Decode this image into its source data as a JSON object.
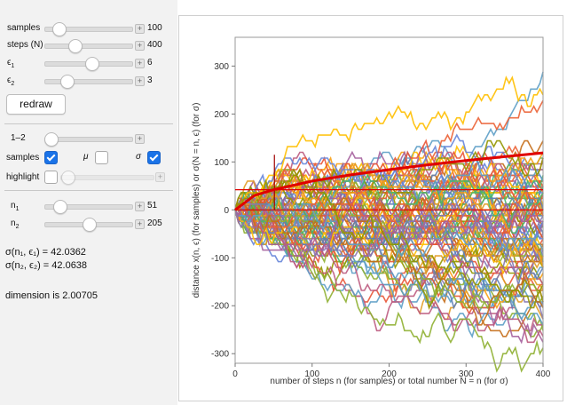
{
  "controls": {
    "samples": {
      "label": "samples",
      "value": "100",
      "fraction": 0.15
    },
    "steps": {
      "label": "steps (N)",
      "value": "400",
      "fraction": 0.35
    },
    "eps1": {
      "label_base": "ϵ",
      "label_sub": "1",
      "value": "6",
      "fraction": 0.55
    },
    "eps2": {
      "label_base": "ϵ",
      "label_sub": "2",
      "value": "3",
      "fraction": 0.27
    },
    "redraw_label": "redraw",
    "range_label": "1–2",
    "range_fraction": 0.0,
    "check_samples": {
      "label": "samples",
      "checked": true
    },
    "check_mu": {
      "label": "μ",
      "checked": false
    },
    "check_sigma": {
      "label": "σ",
      "checked": true
    },
    "highlight": {
      "label": "highlight",
      "checked": false
    },
    "n1": {
      "label_base": "n",
      "label_sub": "1",
      "value": "51",
      "fraction": 0.12
    },
    "n2": {
      "label_base": "n",
      "label_sub": "2",
      "value": "205",
      "fraction": 0.5
    }
  },
  "results": {
    "sigma1": "σ(n₁, ϵ₁) = 42.0362",
    "sigma2": "σ(n₂, ϵ₂) = 42.0638",
    "dimension": "dimension is 2.00705"
  },
  "colors": {
    "sigma_curve": "#e00000",
    "accent": "#1a73e8"
  },
  "chart_data": {
    "type": "line",
    "xlabel": "number of steps n (for samples) or total number N = n (for σ)",
    "ylabel": "distance x(n, ϵ) (for samples) or σ(N = n, ϵ) (for σ)",
    "xlim": [
      0,
      400
    ],
    "ylim": [
      -320,
      360
    ],
    "x_ticks": [
      0,
      100,
      200,
      300,
      400
    ],
    "y_ticks": [
      -300,
      -200,
      -100,
      0,
      100,
      200,
      300
    ],
    "series": [
      {
        "values_x": [
          0,
          400
        ],
        "values": [
          0,
          0
        ]
      },
      {
        "values_x": [
          0,
          25,
          50,
          100,
          150,
          200,
          250,
          300,
          350,
          400
        ],
        "values": [
          0,
          30,
          42,
          60,
          73,
          84,
          94,
          103,
          111,
          119
        ]
      }
    ],
    "reference_line_y": 42,
    "marker_x": 51
  }
}
